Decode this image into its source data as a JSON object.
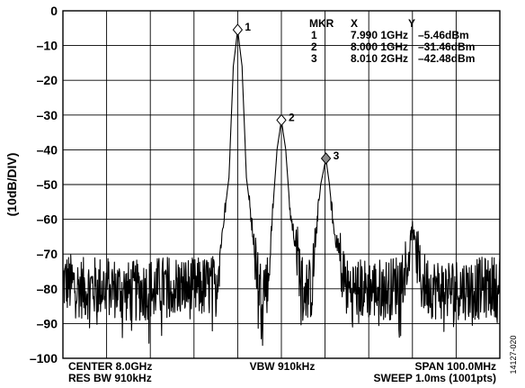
{
  "chart_data": {
    "type": "line",
    "ylabel": "(10dB/DIV)",
    "ylim": [
      -100,
      0
    ],
    "y_ticks": [
      "0",
      "–10",
      "–20",
      "–30",
      "–40",
      "–50",
      "–60",
      "–70",
      "–80",
      "–90",
      "–100"
    ],
    "xlim_ghz": [
      7.95,
      8.05
    ],
    "grid": true,
    "noise_floor_dbm": -80,
    "series": [
      {
        "x_ghz": [
          7.95,
          7.955,
          7.96,
          7.965,
          7.97,
          7.975,
          7.98,
          7.985,
          7.988,
          7.989,
          7.99,
          7.991,
          7.992,
          7.995,
          7.997,
          7.998,
          7.999,
          8.0,
          8.001,
          8.002,
          8.005,
          8.007,
          8.008,
          8.009,
          8.0102,
          8.011,
          8.012,
          8.015,
          8.02,
          8.025,
          8.027,
          8.029,
          8.03,
          8.031,
          8.032,
          8.035,
          8.04,
          8.045,
          8.05
        ],
        "y_dbm": [
          -78,
          -80,
          -79,
          -81,
          -80,
          -79,
          -80,
          -79,
          -48,
          -16,
          -5.46,
          -16,
          -48,
          -80,
          -78,
          -58,
          -40,
          -31.46,
          -40,
          -58,
          -80,
          -80,
          -63,
          -50,
          -42.48,
          -50,
          -63,
          -80,
          -80,
          -80,
          -78,
          -71,
          -62,
          -70,
          -78,
          -80,
          -80,
          -80,
          -79
        ]
      }
    ],
    "markers": [
      {
        "id": "1",
        "x_ghz": 7.99,
        "y_dbm": -5.46,
        "filled": false
      },
      {
        "id": "2",
        "x_ghz": 8.0,
        "y_dbm": -31.46,
        "filled": false
      },
      {
        "id": "3",
        "x_ghz": 8.0102,
        "y_dbm": -42.48,
        "filled": true
      }
    ],
    "marker_table": {
      "headers": [
        "MKR",
        "X",
        "Y"
      ],
      "rows": [
        [
          "1",
          "7.990 1GHz",
          "–5.46dBm"
        ],
        [
          "2",
          "8.000 1GHz",
          "–31.46dBm"
        ],
        [
          "3",
          "8.010 2GHz",
          "–42.48dBm"
        ]
      ]
    },
    "footer": {
      "center": "CENTER  8.0GHz",
      "res_bw": "RES BW  910kHz",
      "vbw": "VBW  910kHz",
      "span": "SPAN  100.0MHz",
      "sweep": "SWEEP  1.0ms (1001pts)"
    },
    "figure_id": "14127-020"
  }
}
